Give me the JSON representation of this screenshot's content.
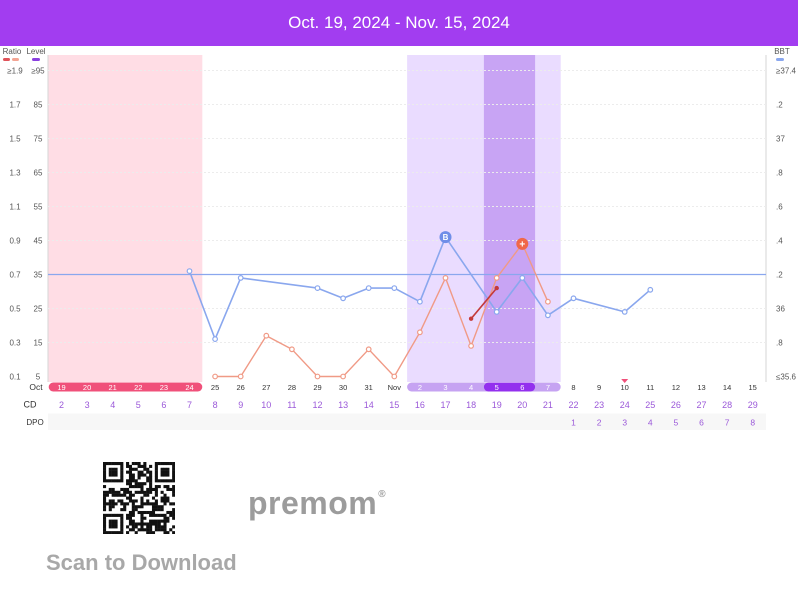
{
  "header": {
    "date_range": "Oct. 19, 2024 - Nov. 15, 2024"
  },
  "legend": {
    "ratio_label": "Ratio",
    "level_label": "Level",
    "bbt_label": "BBT"
  },
  "colors": {
    "banner": "#a23df0",
    "bbt_line": "#8aa7ee",
    "ratio_line": "#f09a86",
    "level_line": "#c43a3a",
    "period_band": "#ffdde5",
    "fertile_band": "#eadcff",
    "ovulation_band": "#c8a4f4",
    "period_row": "#f0507a",
    "fertile_row_light": "#c6a3f2",
    "fertile_row_dark": "#9330ee",
    "dpo_text": "#9b59d9"
  },
  "chart_data": {
    "type": "line",
    "left_axis_ratio_ticks": [
      "≥1.9",
      "1.7",
      "1.5",
      "1.3",
      "1.1",
      "0.9",
      "0.7",
      "0.5",
      "0.3",
      "0.1"
    ],
    "left_axis_level_ticks": [
      "≥95",
      "85",
      "75",
      "65",
      "55",
      "45",
      "35",
      "25",
      "15",
      "5"
    ],
    "right_axis_bbt_ticks": [
      "≥37.4",
      ".2",
      "37",
      ".8",
      ".6",
      ".4",
      ".2",
      "36",
      ".8",
      "≤35.6"
    ],
    "ratio_range": [
      0.1,
      1.9
    ],
    "bbt_range": [
      35.6,
      37.4
    ],
    "coverline_bbt": 36.2,
    "date_row": [
      "Oct",
      "19",
      "20",
      "21",
      "22",
      "23",
      "24",
      "25",
      "26",
      "27",
      "28",
      "29",
      "30",
      "31",
      "Nov",
      "2",
      "3",
      "4",
      "5",
      "6",
      "7",
      "8",
      "9",
      "10",
      "11",
      "12",
      "13",
      "14",
      "15"
    ],
    "cd_label": "CD",
    "cd_values": [
      "2",
      "3",
      "4",
      "5",
      "6",
      "7",
      "8",
      "9",
      "10",
      "11",
      "12",
      "13",
      "14",
      "15",
      "16",
      "17",
      "18",
      "19",
      "20",
      "21",
      "22",
      "23",
      "24",
      "25",
      "26",
      "27",
      "28",
      "29"
    ],
    "dpo_label": "DPO",
    "dpo_values": [
      "",
      "",
      "",
      "",
      "",
      "",
      "",
      "",
      "",
      "",
      "",
      "",
      "",
      "",
      "",
      "",
      "",
      "",
      "",
      "",
      "1",
      "2",
      "3",
      "4",
      "5",
      "6",
      "7",
      "8"
    ],
    "period_days": [
      0,
      1,
      2,
      3,
      4,
      5
    ],
    "fertile_days": [
      14,
      15,
      16,
      17,
      18,
      19
    ],
    "ovulation_days": [
      17,
      18
    ],
    "period_marker_day": 22,
    "bbt_marker_label": "B",
    "ratio_marker_label": "+",
    "series": [
      {
        "key": "bbt",
        "points": [
          [
            5,
            36.22
          ],
          [
            6,
            35.82
          ],
          [
            7,
            36.18
          ],
          [
            10,
            36.12
          ],
          [
            11,
            36.06
          ],
          [
            12,
            36.12
          ],
          [
            13,
            36.12
          ],
          [
            14,
            36.04
          ],
          [
            15,
            36.42
          ],
          [
            17,
            35.98
          ],
          [
            18,
            36.18
          ],
          [
            19,
            35.96
          ],
          [
            20,
            36.06
          ],
          [
            22,
            35.98
          ],
          [
            23,
            36.11
          ]
        ]
      },
      {
        "key": "ratio",
        "points": [
          [
            6,
            0.1
          ],
          [
            7,
            0.1
          ],
          [
            8,
            0.34
          ],
          [
            9,
            0.26
          ],
          [
            10,
            0.1
          ],
          [
            11,
            0.1
          ],
          [
            12,
            0.26
          ],
          [
            13,
            0.1
          ],
          [
            14,
            0.36
          ],
          [
            15,
            0.68
          ],
          [
            16,
            0.28
          ],
          [
            17,
            0.68
          ],
          [
            18,
            0.88
          ],
          [
            19,
            0.54
          ]
        ]
      },
      {
        "key": "level",
        "points": [
          [
            16,
            0.44
          ],
          [
            17,
            0.62
          ]
        ]
      }
    ]
  },
  "footer": {
    "brand": "premom",
    "scan_label": "Scan to Download"
  }
}
